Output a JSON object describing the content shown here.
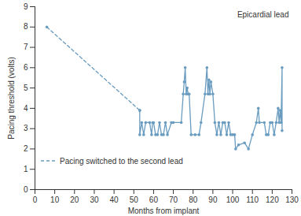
{
  "chart_data": {
    "type": "line",
    "xlabel": "Months from implant",
    "ylabel": "Pacing threshold (volts)",
    "annotations": [
      "Epicardial lead"
    ],
    "xlim": [
      0,
      130
    ],
    "xticks": [
      0,
      10,
      20,
      30,
      40,
      50,
      60,
      70,
      80,
      90,
      100,
      110,
      120,
      130
    ],
    "ylim": [
      0,
      9
    ],
    "yticks": [
      0,
      1,
      2,
      3,
      4,
      5,
      6,
      7,
      8,
      9
    ],
    "grid": false,
    "legend": "lower left",
    "series": [
      {
        "name": "Pacing switched to the second lead",
        "color": "#6a9cc0",
        "line_style": "dashed",
        "marker": "circle",
        "x": [
          6,
          53
        ],
        "values": [
          8.0,
          3.9
        ]
      },
      {
        "color": "#6a9cc0",
        "line_style": "solid",
        "marker": "circle",
        "x": [
          53,
          53,
          54,
          55,
          56,
          58,
          59,
          59.5,
          60,
          61,
          62,
          63,
          64,
          65,
          66,
          67,
          69,
          70,
          74,
          75,
          75.5,
          76,
          76.5,
          77,
          77.5,
          78,
          79,
          81,
          83,
          84,
          86,
          87,
          87.5,
          88,
          88.5,
          89,
          90,
          91,
          92,
          93,
          94,
          95,
          96,
          97,
          98,
          99,
          100,
          101,
          101.5,
          103,
          106,
          108,
          110,
          112,
          113,
          113.5,
          116,
          117,
          118,
          119,
          120,
          121,
          122,
          123,
          123.5,
          124,
          124.5,
          125,
          125
        ],
        "values": [
          3.9,
          2.7,
          3.3,
          2.7,
          3.3,
          3.3,
          2.7,
          3.3,
          3.3,
          2.7,
          2.7,
          3.3,
          2.7,
          2.7,
          3.3,
          2.7,
          3.3,
          3.3,
          3.3,
          4.7,
          5.3,
          6.0,
          4.7,
          5.0,
          4.7,
          4.7,
          2.7,
          2.7,
          2.7,
          3.3,
          4.7,
          6.0,
          4.7,
          5.4,
          4.7,
          5.3,
          4.7,
          3.3,
          2.7,
          3.3,
          2.7,
          3.3,
          3.3,
          2.7,
          3.3,
          2.7,
          2.7,
          2.7,
          2.0,
          2.2,
          2.3,
          2.0,
          2.7,
          3.3,
          4.0,
          3.3,
          3.3,
          2.7,
          2.7,
          3.3,
          3.3,
          2.7,
          3.3,
          4.0,
          3.3,
          3.9,
          3.3,
          6.0,
          2.9
        ]
      }
    ]
  }
}
